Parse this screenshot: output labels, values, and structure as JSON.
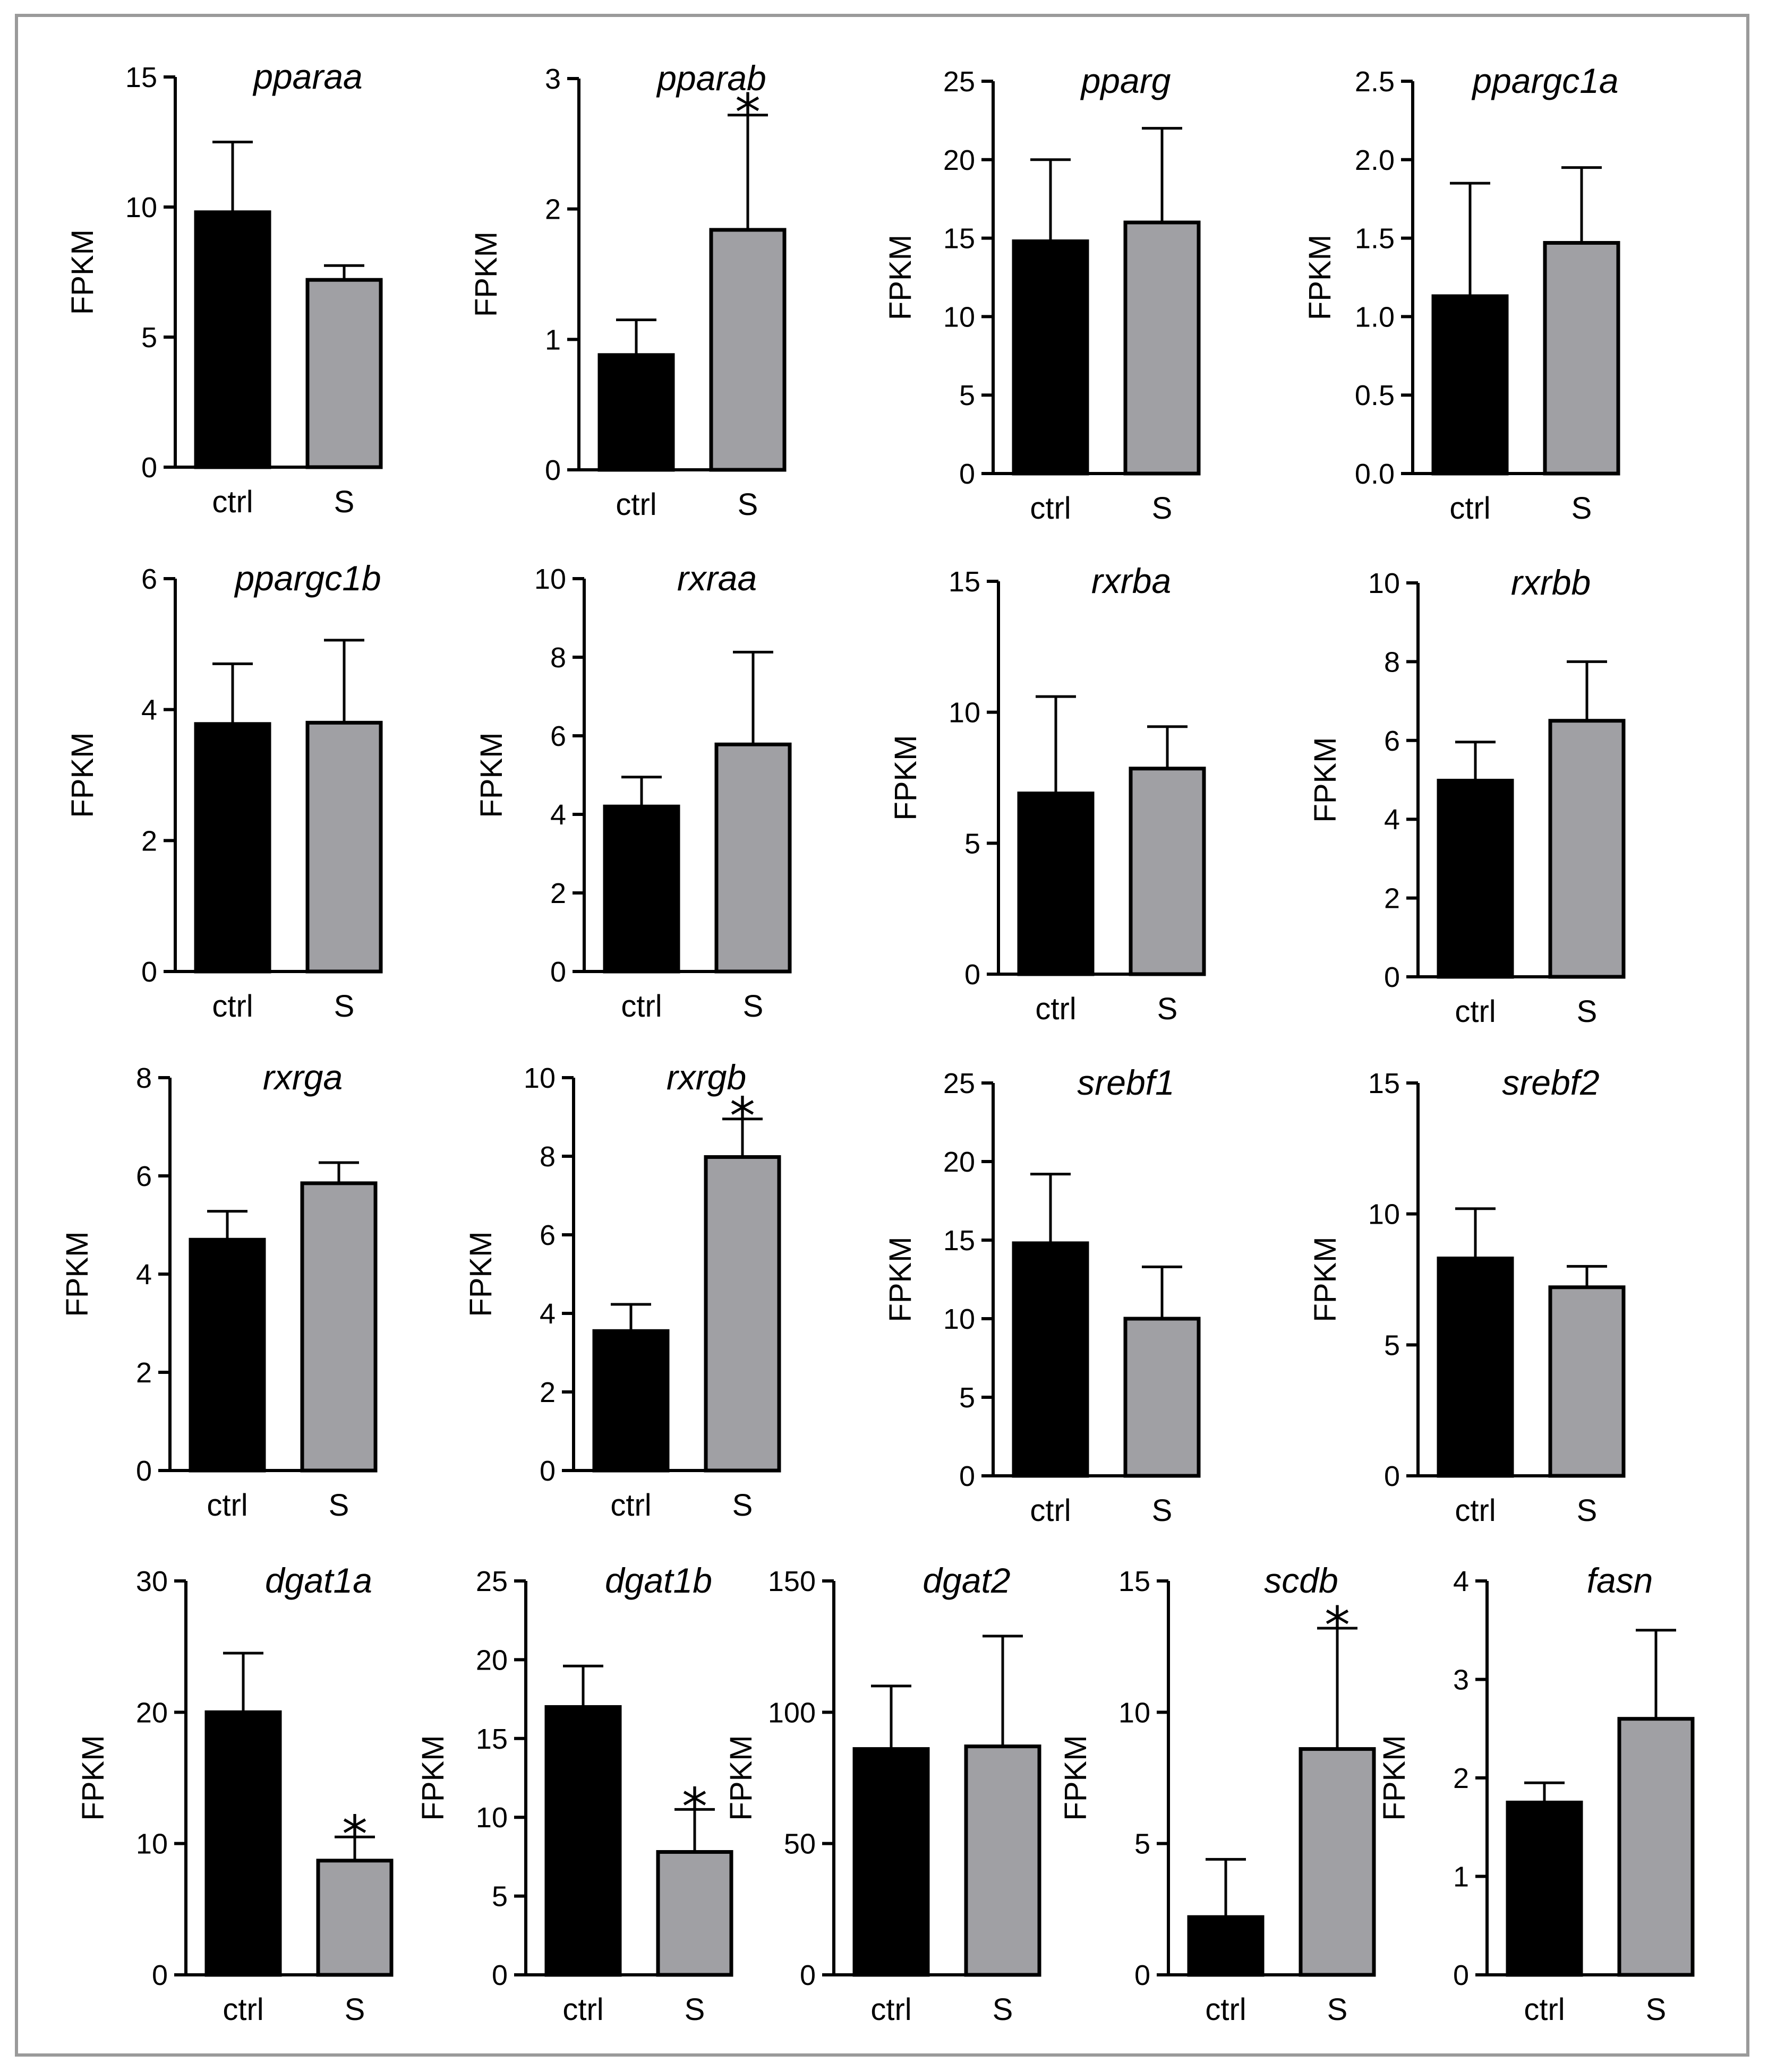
{
  "colors": {
    "ctrl": "#000000",
    "S": "#a0a0a4",
    "frame": "#9a9a9a",
    "axis": "#000000"
  },
  "chart_data": [
    {
      "type": "bar",
      "title": "pparaa",
      "ylabel": "FPKM",
      "categories": [
        "ctrl",
        "S"
      ],
      "values": [
        9.8,
        7.2
      ],
      "errors": [
        2.7,
        0.55
      ],
      "significant": [
        false,
        false
      ],
      "ylim": [
        0,
        15
      ],
      "yticks": [
        "0",
        "5",
        "10",
        "15"
      ]
    },
    {
      "type": "bar",
      "title": "pparab",
      "ylabel": "FPKM",
      "categories": [
        "ctrl",
        "S"
      ],
      "values": [
        0.88,
        1.84
      ],
      "errors": [
        0.27,
        0.88
      ],
      "significant": [
        false,
        true
      ],
      "ylim": [
        0,
        3
      ],
      "yticks": [
        "0",
        "1",
        "2",
        "3"
      ]
    },
    {
      "type": "bar",
      "title": "pparg",
      "ylabel": "FPKM",
      "categories": [
        "ctrl",
        "S"
      ],
      "values": [
        14.8,
        16
      ],
      "errors": [
        5.2,
        6
      ],
      "significant": [
        false,
        false
      ],
      "ylim": [
        0,
        25
      ],
      "yticks": [
        "0",
        "5",
        "10",
        "15",
        "20",
        "25"
      ]
    },
    {
      "type": "bar",
      "title": "ppargc1a",
      "ylabel": "FPKM",
      "categories": [
        "ctrl",
        "S"
      ],
      "values": [
        1.13,
        1.47
      ],
      "errors": [
        0.72,
        0.48
      ],
      "significant": [
        false,
        false
      ],
      "ylim": [
        0,
        2.5
      ],
      "yticks": [
        "0.0",
        "0.5",
        "1.0",
        "1.5",
        "2.0",
        "2.5"
      ]
    },
    {
      "type": "bar",
      "title": "ppargc1b",
      "ylabel": "FPKM",
      "categories": [
        "ctrl",
        "S"
      ],
      "values": [
        3.78,
        3.8
      ],
      "errors": [
        0.92,
        1.26
      ],
      "significant": [
        false,
        false
      ],
      "ylim": [
        0,
        6
      ],
      "yticks": [
        "0",
        "2",
        "4",
        "6"
      ]
    },
    {
      "type": "bar",
      "title": "rxraa",
      "ylabel": "FPKM",
      "categories": [
        "ctrl",
        "S"
      ],
      "values": [
        4.2,
        5.78
      ],
      "errors": [
        0.75,
        2.35
      ],
      "significant": [
        false,
        false
      ],
      "ylim": [
        0,
        10
      ],
      "yticks": [
        "0",
        "2",
        "4",
        "6",
        "8",
        "10"
      ]
    },
    {
      "type": "bar",
      "title": "rxrba",
      "ylabel": "FPKM",
      "categories": [
        "ctrl",
        "S"
      ],
      "values": [
        6.9,
        7.85
      ],
      "errors": [
        3.7,
        1.6
      ],
      "significant": [
        false,
        false
      ],
      "ylim": [
        0,
        15
      ],
      "yticks": [
        "0",
        "5",
        "10",
        "15"
      ]
    },
    {
      "type": "bar",
      "title": "rxrbb",
      "ylabel": "FPKM",
      "categories": [
        "ctrl",
        "S"
      ],
      "values": [
        4.98,
        6.5
      ],
      "errors": [
        0.98,
        1.5
      ],
      "significant": [
        false,
        false
      ],
      "ylim": [
        0,
        10
      ],
      "yticks": [
        "0",
        "2",
        "4",
        "6",
        "8",
        "10"
      ]
    },
    {
      "type": "bar",
      "title": "rxrga",
      "ylabel": "FPKM",
      "categories": [
        "ctrl",
        "S"
      ],
      "values": [
        4.7,
        5.85
      ],
      "errors": [
        0.58,
        0.42
      ],
      "significant": [
        false,
        false
      ],
      "ylim": [
        0,
        8
      ],
      "yticks": [
        "0",
        "2",
        "4",
        "6",
        "8"
      ]
    },
    {
      "type": "bar",
      "title": "rxrgb",
      "ylabel": "FPKM",
      "categories": [
        "ctrl",
        "S"
      ],
      "values": [
        3.55,
        7.98
      ],
      "errors": [
        0.68,
        0.97
      ],
      "significant": [
        false,
        true
      ],
      "ylim": [
        0,
        10
      ],
      "yticks": [
        "0",
        "2",
        "4",
        "6",
        "8",
        "10"
      ]
    },
    {
      "type": "bar",
      "title": "srebf1",
      "ylabel": "FPKM",
      "categories": [
        "ctrl",
        "S"
      ],
      "values": [
        14.8,
        10
      ],
      "errors": [
        4.4,
        3.3
      ],
      "significant": [
        false,
        false
      ],
      "ylim": [
        0,
        25
      ],
      "yticks": [
        "0",
        "5",
        "10",
        "15",
        "20",
        "25"
      ]
    },
    {
      "type": "bar",
      "title": "srebf2",
      "ylabel": "FPKM",
      "categories": [
        "ctrl",
        "S"
      ],
      "values": [
        8.3,
        7.2
      ],
      "errors": [
        1.9,
        0.8
      ],
      "significant": [
        false,
        false
      ],
      "ylim": [
        0,
        15
      ],
      "yticks": [
        "0",
        "5",
        "10",
        "15"
      ]
    },
    {
      "type": "bar",
      "title": "dgat1a",
      "ylabel": "FPKM",
      "categories": [
        "ctrl",
        "S"
      ],
      "values": [
        20,
        8.7
      ],
      "errors": [
        4.5,
        1.8
      ],
      "significant": [
        false,
        true
      ],
      "ylim": [
        0,
        30
      ],
      "yticks": [
        "0",
        "10",
        "20",
        "30"
      ]
    },
    {
      "type": "bar",
      "title": "dgat1b",
      "ylabel": "FPKM",
      "categories": [
        "ctrl",
        "S"
      ],
      "values": [
        17,
        7.8
      ],
      "errors": [
        2.6,
        2.7
      ],
      "significant": [
        false,
        true
      ],
      "ylim": [
        0,
        25
      ],
      "yticks": [
        "0",
        "5",
        "10",
        "15",
        "20",
        "25"
      ]
    },
    {
      "type": "bar",
      "title": "dgat2",
      "ylabel": "FPKM",
      "categories": [
        "ctrl",
        "S"
      ],
      "values": [
        86,
        87
      ],
      "errors": [
        24,
        42
      ],
      "significant": [
        false,
        false
      ],
      "ylim": [
        0,
        150
      ],
      "yticks": [
        "0",
        "50",
        "100",
        "150"
      ]
    },
    {
      "type": "bar",
      "title": "scdb",
      "ylabel": "FPKM",
      "categories": [
        "ctrl",
        "S"
      ],
      "values": [
        2.2,
        8.6
      ],
      "errors": [
        2.2,
        4.6
      ],
      "significant": [
        false,
        true
      ],
      "ylim": [
        0,
        15
      ],
      "yticks": [
        "0",
        "5",
        "10",
        "15"
      ]
    },
    {
      "type": "bar",
      "title": "fasn",
      "ylabel": "FPKM",
      "categories": [
        "ctrl",
        "S"
      ],
      "values": [
        1.75,
        2.6
      ],
      "errors": [
        0.2,
        0.9
      ],
      "significant": [
        false,
        false
      ],
      "ylim": [
        0,
        4
      ],
      "yticks": [
        "0",
        "1",
        "2",
        "3",
        "4"
      ]
    }
  ]
}
